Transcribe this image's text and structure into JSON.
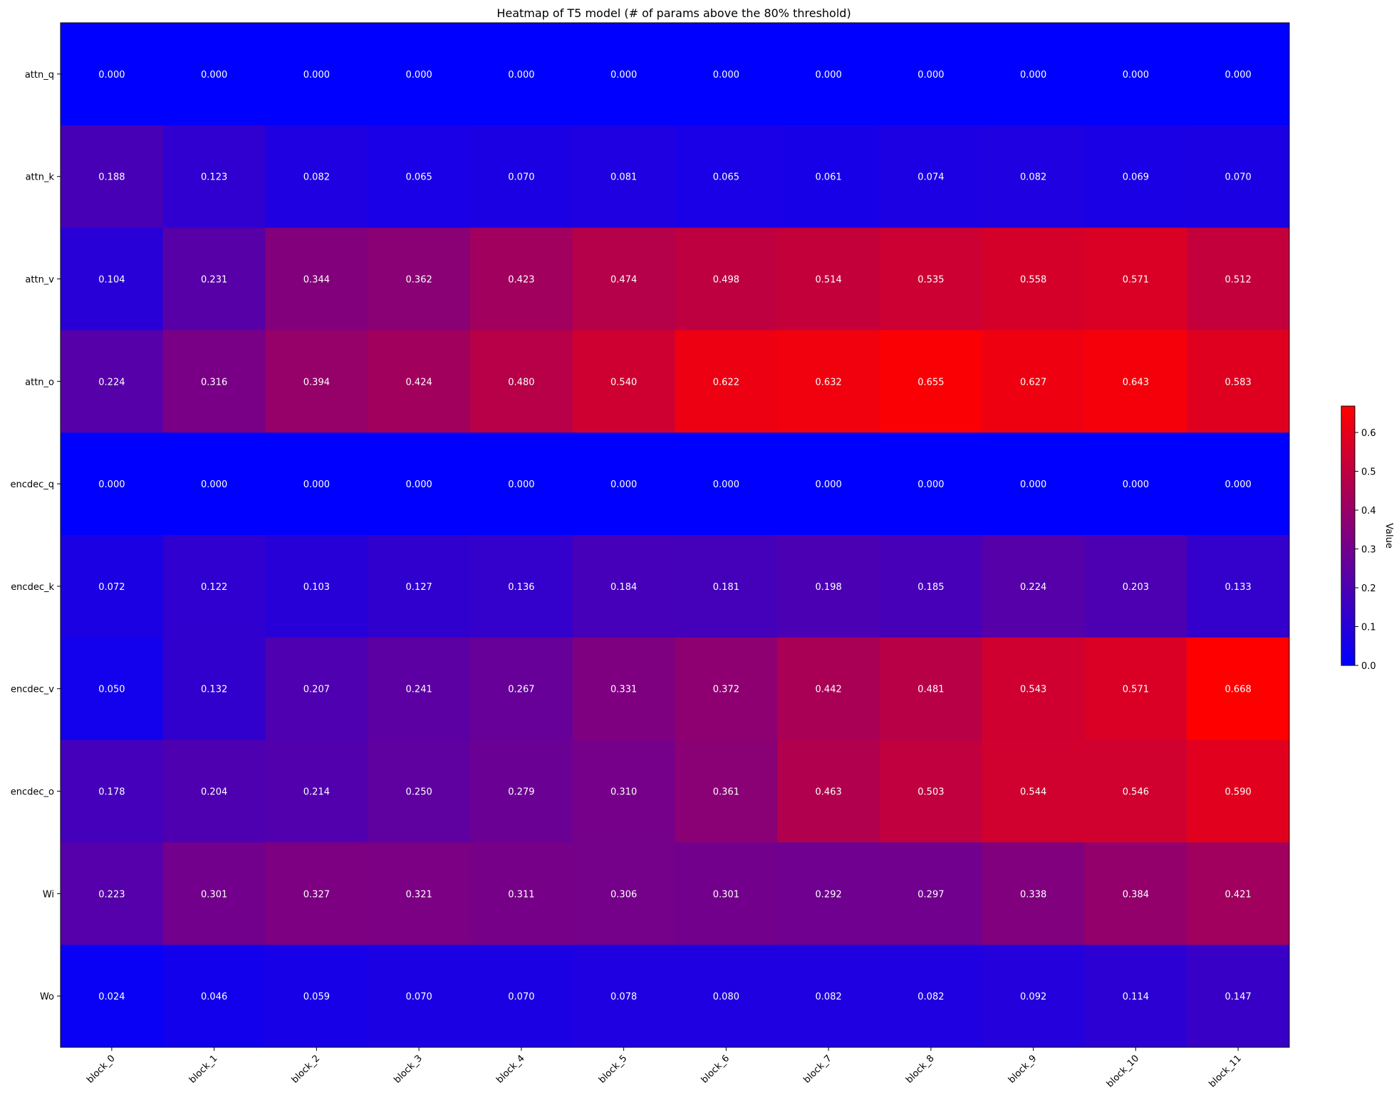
{
  "chart_data": {
    "type": "heatmap",
    "title": "Heatmap of T5 model (# of params above the 80% threshold)",
    "x_categories": [
      "block_0",
      "block_1",
      "block_2",
      "block_3",
      "block_4",
      "block_5",
      "block_6",
      "block_7",
      "block_8",
      "block_9",
      "block_10",
      "block_11"
    ],
    "y_categories": [
      "attn_q",
      "attn_k",
      "attn_v",
      "attn_o",
      "encdec_q",
      "encdec_k",
      "encdec_v",
      "encdec_o",
      "Wi",
      "Wo"
    ],
    "values": [
      [
        0.0,
        0.0,
        0.0,
        0.0,
        0.0,
        0.0,
        0.0,
        0.0,
        0.0,
        0.0,
        0.0,
        0.0
      ],
      [
        0.188,
        0.123,
        0.082,
        0.065,
        0.07,
        0.081,
        0.065,
        0.061,
        0.074,
        0.082,
        0.069,
        0.07
      ],
      [
        0.104,
        0.231,
        0.344,
        0.362,
        0.423,
        0.474,
        0.498,
        0.514,
        0.535,
        0.558,
        0.571,
        0.512
      ],
      [
        0.224,
        0.316,
        0.394,
        0.424,
        0.48,
        0.54,
        0.622,
        0.632,
        0.655,
        0.627,
        0.643,
        0.583
      ],
      [
        0.0,
        0.0,
        0.0,
        0.0,
        0.0,
        0.0,
        0.0,
        0.0,
        0.0,
        0.0,
        0.0,
        0.0
      ],
      [
        0.072,
        0.122,
        0.103,
        0.127,
        0.136,
        0.184,
        0.181,
        0.198,
        0.185,
        0.224,
        0.203,
        0.133
      ],
      [
        0.05,
        0.132,
        0.207,
        0.241,
        0.267,
        0.331,
        0.372,
        0.442,
        0.481,
        0.543,
        0.571,
        0.668
      ],
      [
        0.178,
        0.204,
        0.214,
        0.25,
        0.279,
        0.31,
        0.361,
        0.463,
        0.503,
        0.544,
        0.546,
        0.59
      ],
      [
        0.223,
        0.301,
        0.327,
        0.321,
        0.311,
        0.306,
        0.301,
        0.292,
        0.297,
        0.338,
        0.384,
        0.421
      ],
      [
        0.024,
        0.046,
        0.059,
        0.07,
        0.07,
        0.078,
        0.08,
        0.082,
        0.082,
        0.092,
        0.114,
        0.147
      ]
    ],
    "value_format": "0.000",
    "colorbar": {
      "label": "Value",
      "range": [
        0,
        0.668
      ],
      "ticks": [
        "0.0",
        "0.1",
        "0.2",
        "0.3",
        "0.4",
        "0.5",
        "0.6"
      ],
      "colors": [
        "#0000ff",
        "#ff0000"
      ]
    },
    "grid": false
  }
}
